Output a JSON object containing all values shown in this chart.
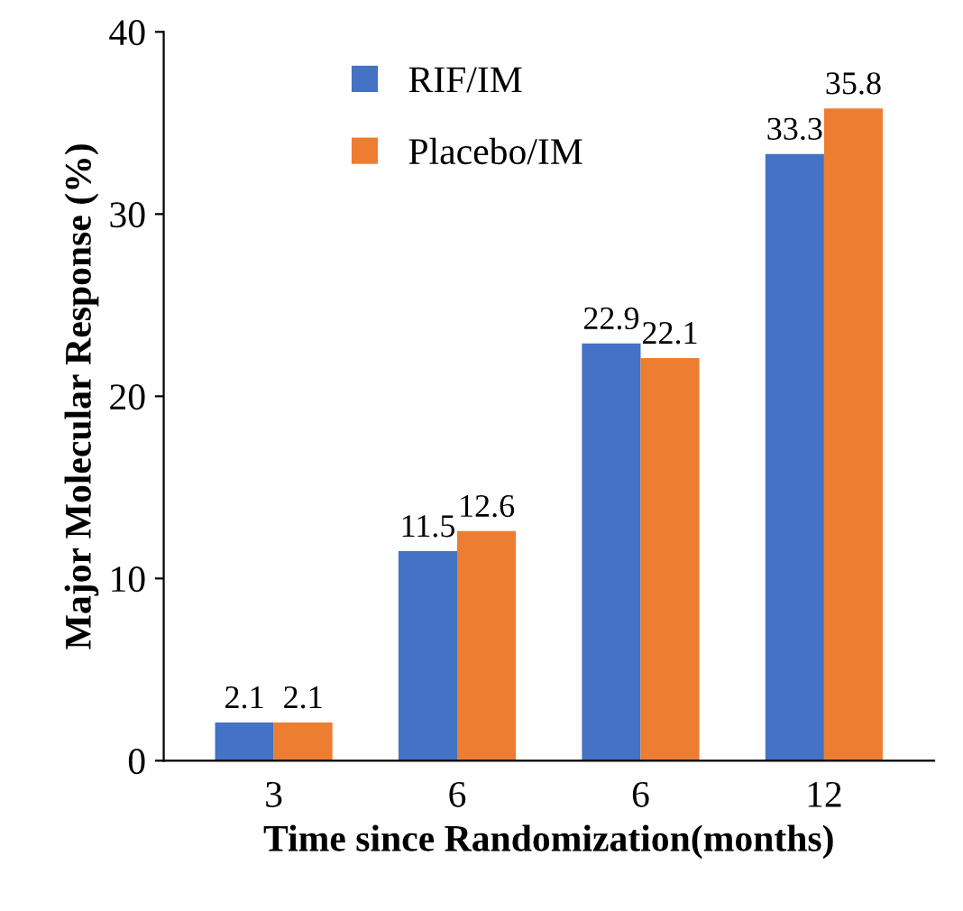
{
  "chart_data": {
    "type": "bar",
    "xlabel": "Time since Randomization(months)",
    "ylabel": "Major Molecular Response (%)",
    "categories": [
      "3",
      "6",
      "6",
      "12"
    ],
    "series": [
      {
        "name": "RIF/IM",
        "color": "#4472c4",
        "values": [
          2.1,
          11.5,
          22.9,
          33.3
        ]
      },
      {
        "name": "Placebo/IM",
        "color": "#ed7d31",
        "values": [
          2.1,
          12.6,
          22.1,
          35.8
        ]
      }
    ],
    "ylim": [
      0,
      40
    ],
    "yticks": [
      0,
      10,
      20,
      30,
      40
    ],
    "data_labels": true,
    "grid": false,
    "legend": "top left"
  }
}
